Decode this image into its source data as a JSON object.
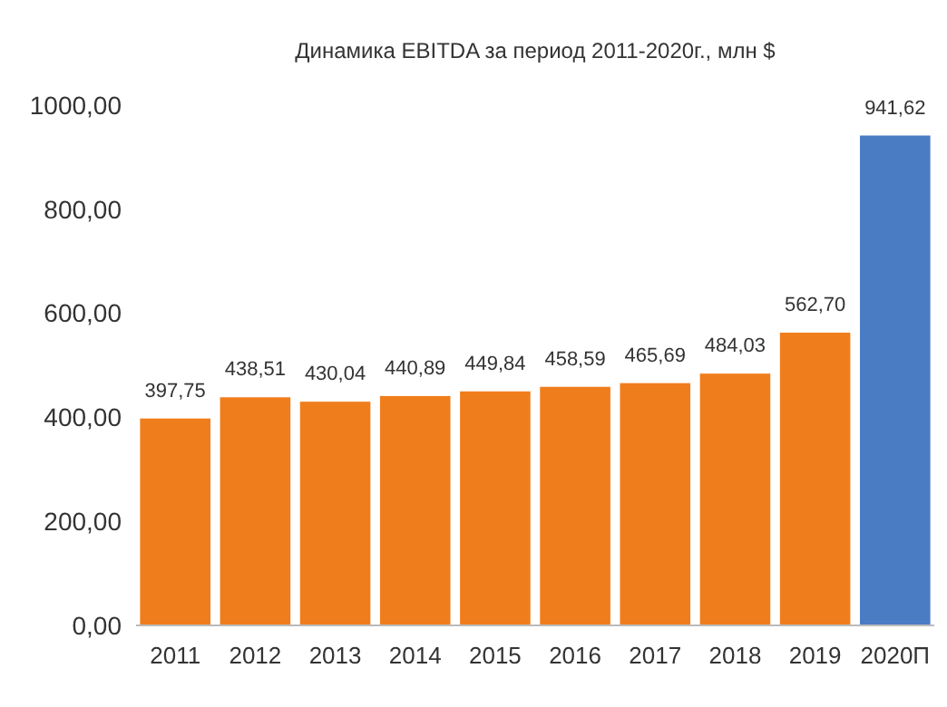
{
  "chart_data": {
    "type": "bar",
    "title": "Динамика EBITDA за период 2011-2020г.,  млн $",
    "categories": [
      "2011",
      "2012",
      "2013",
      "2014",
      "2015",
      "2016",
      "2017",
      "2018",
      "2019",
      "2020П"
    ],
    "values": [
      397.75,
      438.51,
      430.04,
      440.89,
      449.84,
      458.59,
      465.69,
      484.03,
      562.7,
      941.62
    ],
    "colors": [
      "#f07d1c",
      "#f07d1c",
      "#f07d1c",
      "#f07d1c",
      "#f07d1c",
      "#f07d1c",
      "#f07d1c",
      "#f07d1c",
      "#f07d1c",
      "#4a7cc4"
    ],
    "value_labels": [
      "397,75",
      "438,51",
      "430,04",
      "440,89",
      "449,84",
      "458,59",
      "465,69",
      "484,03",
      "562,70",
      "941,62"
    ],
    "ylim": [
      0,
      1000
    ],
    "yticks": [
      {
        "value": 0,
        "label": "0,00"
      },
      {
        "value": 200,
        "label": "200,00"
      },
      {
        "value": 400,
        "label": "400,00"
      },
      {
        "value": 600,
        "label": "600,00"
      },
      {
        "value": 800,
        "label": "800,00"
      },
      {
        "value": 1000,
        "label": "1000,00"
      }
    ],
    "grid": false
  }
}
